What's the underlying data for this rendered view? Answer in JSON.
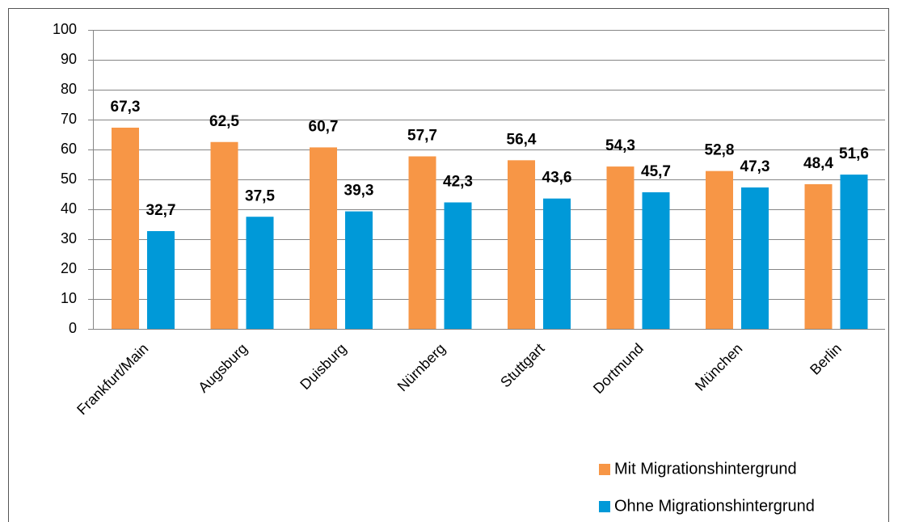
{
  "chart_data": {
    "type": "bar",
    "categories": [
      "Frankfurt/Main",
      "Augsburg",
      "Duisburg",
      "Nürnberg",
      "Stuttgart",
      "Dortmund",
      "München",
      "Berlin"
    ],
    "series": [
      {
        "name": "Mit Migrationshintergrund",
        "color": "#f79646",
        "values": [
          67.3,
          62.5,
          60.7,
          57.7,
          56.4,
          54.3,
          52.8,
          48.4
        ],
        "value_labels": [
          "67,3",
          "62,5",
          "60,7",
          "57,7",
          "56,4",
          "54,3",
          "52,8",
          "48,4"
        ]
      },
      {
        "name": "Ohne Migrationshintergrund",
        "color": "#0099d8",
        "values": [
          32.7,
          37.5,
          39.3,
          42.3,
          43.6,
          45.7,
          47.3,
          51.6
        ],
        "value_labels": [
          "32,7",
          "37,5",
          "39,3",
          "42,3",
          "43,6",
          "45,7",
          "47,3",
          "51,6"
        ]
      }
    ],
    "ylim": [
      0,
      100
    ],
    "yticks": [
      0,
      10,
      20,
      30,
      40,
      50,
      60,
      70,
      80,
      90,
      100
    ],
    "grid": true,
    "legend": "bottom-right"
  }
}
